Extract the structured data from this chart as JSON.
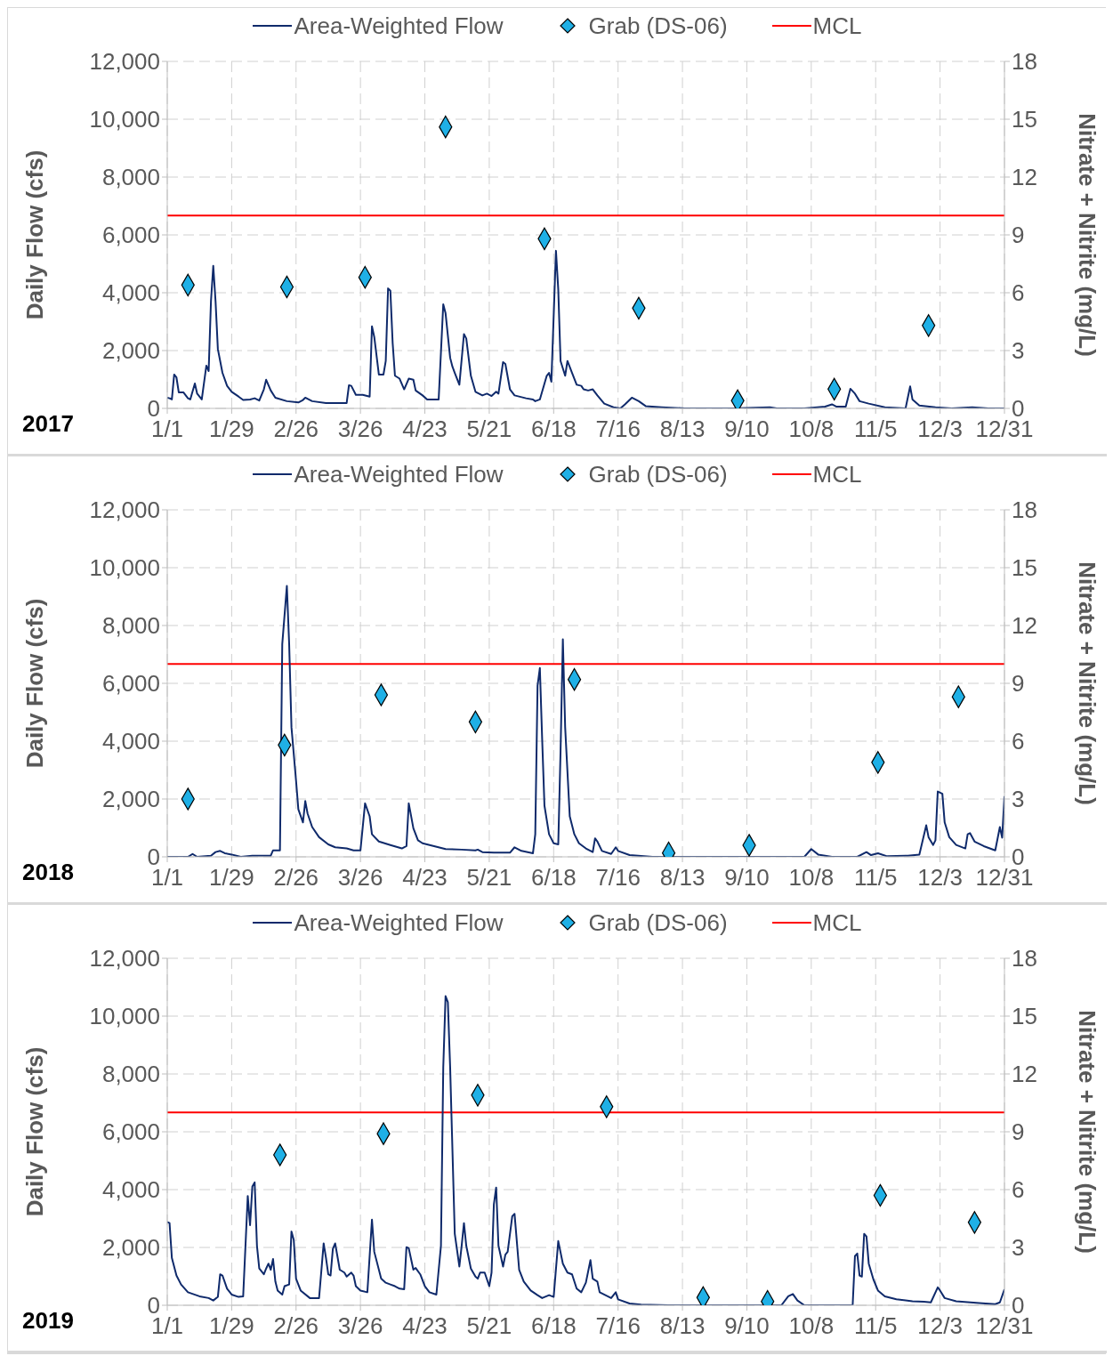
{
  "chart_data": [
    {
      "type": "line",
      "title": "2017",
      "ylabel": "Daily Flow (cfs)",
      "y2label": "Nitrate + Nitrite (mg/L)",
      "legend": "top",
      "grid": true,
      "xlim": [
        "2017-01-01",
        "2017-12-31"
      ],
      "xticks": [
        {
          "value": "2017-01-01",
          "label": "1/1"
        },
        {
          "value": "2017-01-29",
          "label": "1/29"
        },
        {
          "value": "2017-02-26",
          "label": "2/26"
        },
        {
          "value": "2017-03-26",
          "label": "3/26"
        },
        {
          "value": "2017-04-23",
          "label": "4/23"
        },
        {
          "value": "2017-05-21",
          "label": "5/21"
        },
        {
          "value": "2017-06-18",
          "label": "6/18"
        },
        {
          "value": "2017-07-16",
          "label": "7/16"
        },
        {
          "value": "2017-08-13",
          "label": "8/13"
        },
        {
          "value": "2017-09-10",
          "label": "9/10"
        },
        {
          "value": "2017-10-08",
          "label": "10/8"
        },
        {
          "value": "2017-11-05",
          "label": "11/5"
        },
        {
          "value": "2017-12-03",
          "label": "12/3"
        },
        {
          "value": "2017-12-31",
          "label": "12/31"
        }
      ],
      "ylim": [
        0,
        12000
      ],
      "yticks": [
        {
          "value": 0,
          "label": "0"
        },
        {
          "value": 2000,
          "label": "2,000"
        },
        {
          "value": 4000,
          "label": "4,000"
        },
        {
          "value": 6000,
          "label": "6,000"
        },
        {
          "value": 8000,
          "label": "8,000"
        },
        {
          "value": 10000,
          "label": "10,000"
        },
        {
          "value": 12000,
          "label": "12,000"
        }
      ],
      "y2lim": [
        0,
        18
      ],
      "y2ticks": [
        0,
        3,
        6,
        9,
        12,
        15,
        18
      ],
      "ref_lines": [
        {
          "axis": "y2",
          "value": 10,
          "label": "MCL",
          "color": "#ff0000"
        }
      ],
      "series": [
        {
          "name": "Area-Weighted Flow",
          "type": "line",
          "color": "#0f2a6b",
          "x": [
            "2017-01-01",
            "2017-01-02",
            "2017-01-03",
            "2017-01-04",
            "2017-01-05",
            "2017-01-06",
            "2017-01-08",
            "2017-01-10",
            "2017-01-11",
            "2017-01-13",
            "2017-01-14",
            "2017-01-16",
            "2017-01-18",
            "2017-01-19",
            "2017-01-20",
            "2017-01-21",
            "2017-01-22",
            "2017-01-23",
            "2017-01-25",
            "2017-01-27",
            "2017-01-29",
            "2017-02-01",
            "2017-02-03",
            "2017-02-06",
            "2017-02-08",
            "2017-02-10",
            "2017-02-12",
            "2017-02-13",
            "2017-02-15",
            "2017-02-17",
            "2017-02-22",
            "2017-02-27",
            "2017-03-01",
            "2017-03-02",
            "2017-03-05",
            "2017-03-11",
            "2017-03-20",
            "2017-03-21",
            "2017-03-22",
            "2017-03-24",
            "2017-03-27",
            "2017-03-30",
            "2017-03-31",
            "2017-04-01",
            "2017-04-03",
            "2017-04-05",
            "2017-04-06",
            "2017-04-07",
            "2017-04-08",
            "2017-04-09",
            "2017-04-10",
            "2017-04-12",
            "2017-04-14",
            "2017-04-16",
            "2017-04-18",
            "2017-04-19",
            "2017-04-22",
            "2017-04-24",
            "2017-04-29",
            "2017-05-01",
            "2017-05-02",
            "2017-05-04",
            "2017-05-05",
            "2017-05-06",
            "2017-05-08",
            "2017-05-10",
            "2017-05-11",
            "2017-05-13",
            "2017-05-15",
            "2017-05-18",
            "2017-05-20",
            "2017-05-22",
            "2017-05-24",
            "2017-05-25",
            "2017-05-27",
            "2017-05-28",
            "2017-05-30",
            "2017-06-01",
            "2017-06-06",
            "2017-06-09",
            "2017-06-10",
            "2017-06-12",
            "2017-06-15",
            "2017-06-16",
            "2017-06-17",
            "2017-06-19",
            "2017-06-20",
            "2017-06-21",
            "2017-06-23",
            "2017-06-24",
            "2017-06-26",
            "2017-06-28",
            "2017-06-30",
            "2017-07-01",
            "2017-07-03",
            "2017-07-05",
            "2017-07-07",
            "2017-07-10",
            "2017-07-14",
            "2017-07-17",
            "2017-07-19",
            "2017-07-22",
            "2017-07-25",
            "2017-07-28",
            "2017-08-04",
            "2017-08-14",
            "2017-09-04",
            "2017-09-20",
            "2017-09-23",
            "2017-10-05",
            "2017-10-14",
            "2017-10-17",
            "2017-10-19",
            "2017-10-23",
            "2017-10-25",
            "2017-10-27",
            "2017-10-29",
            "2017-11-02",
            "2017-11-09",
            "2017-11-18",
            "2017-11-20",
            "2017-11-21",
            "2017-11-24",
            "2017-12-01",
            "2017-12-08",
            "2017-12-17",
            "2017-12-24",
            "2017-12-31"
          ],
          "values": [
            370,
            350,
            310,
            1170,
            1070,
            555,
            555,
            350,
            310,
            860,
            510,
            310,
            1480,
            1290,
            3700,
            4930,
            3700,
            2050,
            1230,
            780,
            575,
            410,
            290,
            310,
            350,
            270,
            660,
            990,
            620,
            370,
            250,
            205,
            290,
            370,
            250,
            185,
            185,
            800,
            780,
            470,
            470,
            410,
            2840,
            2470,
            1170,
            1170,
            1640,
            4150,
            4070,
            2260,
            1130,
            1030,
            660,
            1030,
            990,
            620,
            450,
            310,
            310,
            3600,
            3290,
            1750,
            1440,
            1230,
            820,
            2570,
            2420,
            1130,
            575,
            450,
            510,
            430,
            575,
            510,
            1600,
            1540,
            660,
            450,
            350,
            310,
            250,
            310,
            1130,
            1230,
            920,
            5450,
            4110,
            1640,
            1130,
            1640,
            1230,
            820,
            780,
            660,
            620,
            660,
            450,
            165,
            40,
            0,
            140,
            370,
            250,
            80,
            40,
            0,
            0,
            40,
            0,
            0,
            60,
            140,
            60,
            60,
            680,
            510,
            250,
            165,
            40,
            0,
            760,
            310,
            100,
            40,
            0,
            40,
            0,
            0
          ]
        },
        {
          "name": "Grab (DS-06)",
          "type": "scatter",
          "marker": "diamond",
          "axis": "y2",
          "color": "#1fb0e6",
          "x": [
            "2017-01-10",
            "2017-02-22",
            "2017-03-28",
            "2017-05-02",
            "2017-06-14",
            "2017-07-25",
            "2017-09-06",
            "2017-10-18",
            "2017-11-28"
          ],
          "values": [
            6.4,
            6.3,
            6.8,
            14.6,
            8.8,
            5.2,
            0.4,
            1.0,
            4.3
          ]
        }
      ]
    },
    {
      "type": "line",
      "title": "2018",
      "ylabel": "Daily Flow (cfs)",
      "y2label": "Nitrate + Nitrite (mg/L)",
      "legend": "top",
      "grid": true,
      "xlim": [
        "2018-01-01",
        "2018-12-31"
      ],
      "xticks": [
        {
          "value": "2018-01-01",
          "label": "1/1"
        },
        {
          "value": "2018-01-29",
          "label": "1/29"
        },
        {
          "value": "2018-02-26",
          "label": "2/26"
        },
        {
          "value": "2018-03-26",
          "label": "3/26"
        },
        {
          "value": "2018-04-23",
          "label": "4/23"
        },
        {
          "value": "2018-05-21",
          "label": "5/21"
        },
        {
          "value": "2018-06-18",
          "label": "6/18"
        },
        {
          "value": "2018-07-16",
          "label": "7/16"
        },
        {
          "value": "2018-08-13",
          "label": "8/13"
        },
        {
          "value": "2018-09-10",
          "label": "9/10"
        },
        {
          "value": "2018-10-08",
          "label": "10/8"
        },
        {
          "value": "2018-11-05",
          "label": "11/5"
        },
        {
          "value": "2018-12-03",
          "label": "12/3"
        },
        {
          "value": "2018-12-31",
          "label": "12/31"
        }
      ],
      "ylim": [
        0,
        12000
      ],
      "yticks": [
        {
          "value": 0,
          "label": "0"
        },
        {
          "value": 2000,
          "label": "2,000"
        },
        {
          "value": 4000,
          "label": "4,000"
        },
        {
          "value": 6000,
          "label": "6,000"
        },
        {
          "value": 8000,
          "label": "8,000"
        },
        {
          "value": 10000,
          "label": "10,000"
        },
        {
          "value": 12000,
          "label": "12,000"
        }
      ],
      "y2lim": [
        0,
        18
      ],
      "y2ticks": [
        0,
        3,
        6,
        9,
        12,
        15,
        18
      ],
      "ref_lines": [
        {
          "axis": "y2",
          "value": 10,
          "label": "MCL",
          "color": "#ff0000"
        }
      ],
      "series": [
        {
          "name": "Area-Weighted Flow",
          "type": "line",
          "color": "#0f2a6b",
          "x": [
            "2018-01-01",
            "2018-01-10",
            "2018-01-12",
            "2018-01-14",
            "2018-01-20",
            "2018-01-22",
            "2018-01-24",
            "2018-01-26",
            "2018-01-29",
            "2018-02-02",
            "2018-02-07",
            "2018-02-15",
            "2018-02-16",
            "2018-02-19",
            "2018-02-20",
            "2018-02-22",
            "2018-02-23",
            "2018-02-24",
            "2018-02-26",
            "2018-02-27",
            "2018-03-01",
            "2018-03-02",
            "2018-03-03",
            "2018-03-05",
            "2018-03-08",
            "2018-03-12",
            "2018-03-15",
            "2018-03-20",
            "2018-03-23",
            "2018-03-26",
            "2018-03-28",
            "2018-03-30",
            "2018-03-31",
            "2018-04-03",
            "2018-04-08",
            "2018-04-13",
            "2018-04-15",
            "2018-04-16",
            "2018-04-18",
            "2018-04-20",
            "2018-04-22",
            "2018-04-27",
            "2018-05-02",
            "2018-05-09",
            "2018-05-15",
            "2018-05-16",
            "2018-05-18",
            "2018-05-23",
            "2018-05-30",
            "2018-06-01",
            "2018-06-04",
            "2018-06-09",
            "2018-06-10",
            "2018-06-11",
            "2018-06-12",
            "2018-06-13",
            "2018-06-14",
            "2018-06-16",
            "2018-06-18",
            "2018-06-20",
            "2018-06-21",
            "2018-06-22",
            "2018-06-23",
            "2018-06-25",
            "2018-06-27",
            "2018-06-29",
            "2018-07-02",
            "2018-07-05",
            "2018-07-06",
            "2018-07-07",
            "2018-07-09",
            "2018-07-13",
            "2018-07-15",
            "2018-07-16",
            "2018-07-21",
            "2018-07-31",
            "2018-08-23",
            "2018-09-23",
            "2018-10-05",
            "2018-10-08",
            "2018-10-11",
            "2018-10-17",
            "2018-10-28",
            "2018-11-01",
            "2018-11-03",
            "2018-11-06",
            "2018-11-10",
            "2018-11-19",
            "2018-11-24",
            "2018-11-27",
            "2018-11-28",
            "2018-11-30",
            "2018-12-01",
            "2018-12-02",
            "2018-12-04",
            "2018-12-05",
            "2018-12-07",
            "2018-12-10",
            "2018-12-14",
            "2018-12-15",
            "2018-12-16",
            "2018-12-18",
            "2018-12-22",
            "2018-12-27",
            "2018-12-29",
            "2018-12-30",
            "2018-12-31"
          ],
          "values": [
            0,
            0,
            100,
            0,
            40,
            165,
            205,
            125,
            80,
            0,
            40,
            40,
            225,
            225,
            7360,
            9370,
            7360,
            4480,
            2630,
            1640,
            1190,
            1930,
            1500,
            1030,
            680,
            430,
            330,
            290,
            225,
            225,
            1850,
            1400,
            780,
            530,
            410,
            290,
            370,
            1850,
            990,
            575,
            470,
            370,
            270,
            250,
            225,
            250,
            165,
            145,
            145,
            330,
            205,
            125,
            780,
            5920,
            6530,
            4070,
            1770,
            780,
            470,
            430,
            3660,
            7520,
            4480,
            1400,
            780,
            470,
            290,
            165,
            640,
            530,
            205,
            100,
            330,
            205,
            60,
            0,
            0,
            0,
            0,
            270,
            80,
            0,
            0,
            165,
            60,
            125,
            20,
            40,
            80,
            1090,
            680,
            410,
            575,
            2260,
            2180,
            1190,
            680,
            410,
            290,
            780,
            820,
            530,
            370,
            225,
            1030,
            660,
            2100
          ]
        },
        {
          "name": "Grab (DS-06)",
          "type": "scatter",
          "marker": "diamond",
          "axis": "y2",
          "color": "#1fb0e6",
          "x": [
            "2018-01-10",
            "2018-02-21",
            "2018-04-04",
            "2018-05-15",
            "2018-06-27",
            "2018-08-07",
            "2018-09-11",
            "2018-11-06",
            "2018-12-11"
          ],
          "values": [
            3.0,
            5.8,
            8.4,
            7.0,
            9.2,
            0.2,
            0.6,
            4.9,
            8.3
          ]
        }
      ]
    },
    {
      "type": "line",
      "title": "2019",
      "ylabel": "Daily Flow (cfs)",
      "y2label": "Nitrate + Nitrite (mg/L)",
      "legend": "top",
      "grid": true,
      "xlim": [
        "2019-01-01",
        "2019-12-31"
      ],
      "xticks": [
        {
          "value": "2019-01-01",
          "label": "1/1"
        },
        {
          "value": "2019-01-29",
          "label": "1/29"
        },
        {
          "value": "2019-02-26",
          "label": "2/26"
        },
        {
          "value": "2019-03-26",
          "label": "3/26"
        },
        {
          "value": "2019-04-23",
          "label": "4/23"
        },
        {
          "value": "2019-05-21",
          "label": "5/21"
        },
        {
          "value": "2019-06-18",
          "label": "6/18"
        },
        {
          "value": "2019-07-16",
          "label": "7/16"
        },
        {
          "value": "2019-08-13",
          "label": "8/13"
        },
        {
          "value": "2019-09-10",
          "label": "9/10"
        },
        {
          "value": "2019-10-08",
          "label": "10/8"
        },
        {
          "value": "2019-11-05",
          "label": "11/5"
        },
        {
          "value": "2019-12-03",
          "label": "12/3"
        },
        {
          "value": "2019-12-31",
          "label": "12/31"
        }
      ],
      "ylim": [
        0,
        12000
      ],
      "yticks": [
        {
          "value": 0,
          "label": "0"
        },
        {
          "value": 2000,
          "label": "2,000"
        },
        {
          "value": 4000,
          "label": "4,000"
        },
        {
          "value": 6000,
          "label": "6,000"
        },
        {
          "value": 8000,
          "label": "8,000"
        },
        {
          "value": 10000,
          "label": "10,000"
        },
        {
          "value": 12000,
          "label": "12,000"
        }
      ],
      "y2lim": [
        0,
        18
      ],
      "y2ticks": [
        0,
        3,
        6,
        9,
        12,
        15,
        18
      ],
      "ref_lines": [
        {
          "axis": "y2",
          "value": 10,
          "label": "MCL",
          "color": "#ff0000"
        }
      ],
      "series": [
        {
          "name": "Area-Weighted Flow",
          "type": "line",
          "color": "#0f2a6b",
          "x": [
            "2019-01-01",
            "2019-01-02",
            "2019-01-03",
            "2019-01-05",
            "2019-01-07",
            "2019-01-10",
            "2019-01-15",
            "2019-01-19",
            "2019-01-21",
            "2019-01-23",
            "2019-01-24",
            "2019-01-25",
            "2019-01-27",
            "2019-01-29",
            "2019-02-01",
            "2019-02-03",
            "2019-02-05",
            "2019-02-06",
            "2019-02-07",
            "2019-02-08",
            "2019-02-09",
            "2019-02-10",
            "2019-02-12",
            "2019-02-13",
            "2019-02-14",
            "2019-02-15",
            "2019-02-16",
            "2019-02-17",
            "2019-02-18",
            "2019-02-20",
            "2019-02-21",
            "2019-02-23",
            "2019-02-24",
            "2019-02-25",
            "2019-02-26",
            "2019-02-28",
            "2019-03-04",
            "2019-03-08",
            "2019-03-10",
            "2019-03-11",
            "2019-03-12",
            "2019-03-13",
            "2019-03-14",
            "2019-03-15",
            "2019-03-17",
            "2019-03-19",
            "2019-03-20",
            "2019-03-22",
            "2019-03-23",
            "2019-03-24",
            "2019-03-26",
            "2019-03-29",
            "2019-03-31",
            "2019-04-01",
            "2019-04-04",
            "2019-04-06",
            "2019-04-08",
            "2019-04-10",
            "2019-04-12",
            "2019-04-14",
            "2019-04-15",
            "2019-04-16",
            "2019-04-18",
            "2019-04-19",
            "2019-04-21",
            "2019-04-23",
            "2019-04-25",
            "2019-04-28",
            "2019-04-30",
            "2019-05-01",
            "2019-05-02",
            "2019-05-03",
            "2019-05-04",
            "2019-05-06",
            "2019-05-08",
            "2019-05-09",
            "2019-05-10",
            "2019-05-11",
            "2019-05-13",
            "2019-05-15",
            "2019-05-16",
            "2019-05-17",
            "2019-05-19",
            "2019-05-21",
            "2019-05-22",
            "2019-05-23",
            "2019-05-24",
            "2019-05-25",
            "2019-05-27",
            "2019-05-28",
            "2019-05-29",
            "2019-05-31",
            "2019-06-01",
            "2019-06-03",
            "2019-06-05",
            "2019-06-08",
            "2019-06-11",
            "2019-06-13",
            "2019-06-16",
            "2019-06-18",
            "2019-06-20",
            "2019-06-22",
            "2019-06-24",
            "2019-06-26",
            "2019-06-28",
            "2019-06-30",
            "2019-07-02",
            "2019-07-04",
            "2019-07-05",
            "2019-07-07",
            "2019-07-08",
            "2019-07-13",
            "2019-07-15",
            "2019-07-16",
            "2019-07-21",
            "2019-07-26",
            "2019-08-07",
            "2019-09-16",
            "2019-09-25",
            "2019-09-28",
            "2019-09-30",
            "2019-10-02",
            "2019-10-05",
            "2019-10-26",
            "2019-10-27",
            "2019-10-28",
            "2019-10-29",
            "2019-10-30",
            "2019-10-31",
            "2019-11-01",
            "2019-11-02",
            "2019-11-04",
            "2019-11-06",
            "2019-11-09",
            "2019-11-14",
            "2019-11-21",
            "2019-11-26",
            "2019-11-29",
            "2019-12-02",
            "2019-12-03",
            "2019-12-05",
            "2019-12-10",
            "2019-12-20",
            "2019-12-27",
            "2019-12-29",
            "2019-12-31"
          ],
          "values": [
            2880,
            2840,
            1640,
            1030,
            720,
            450,
            310,
            250,
            165,
            290,
            1070,
            1030,
            575,
            370,
            290,
            310,
            3780,
            2770,
            4110,
            4250,
            2060,
            1270,
            1070,
            1270,
            1440,
            1230,
            1600,
            820,
            510,
            370,
            660,
            720,
            2550,
            2260,
            920,
            510,
            250,
            250,
            2140,
            1640,
            1070,
            1030,
            1950,
            2140,
            1230,
            1130,
            990,
            1130,
            1030,
            660,
            510,
            450,
            2960,
            1850,
            920,
            780,
            720,
            660,
            575,
            555,
            2010,
            1970,
            1230,
            1290,
            1070,
            660,
            450,
            370,
            2060,
            8220,
            10690,
            10480,
            8220,
            2470,
            1340,
            2060,
            2840,
            2060,
            1270,
            990,
            920,
            1130,
            1130,
            660,
            1130,
            3490,
            4070,
            2060,
            1340,
            1750,
            1850,
            3080,
            3160,
            1230,
            820,
            510,
            350,
            250,
            350,
            290,
            2220,
            1440,
            1130,
            1070,
            575,
            450,
            780,
            1560,
            920,
            820,
            450,
            250,
            450,
            205,
            60,
            20,
            0,
            0,
            0,
            310,
            390,
            165,
            0,
            0,
            1700,
            1790,
            1030,
            990,
            2470,
            2380,
            1440,
            900,
            510,
            310,
            205,
            140,
            125,
            100,
            620,
            510,
            250,
            140,
            80,
            40,
            100,
            555
          ]
        },
        {
          "name": "Grab (DS-06)",
          "type": "scatter",
          "marker": "diamond",
          "axis": "y2",
          "color": "#1fb0e6",
          "x": [
            "2019-02-19",
            "2019-04-05",
            "2019-05-16",
            "2019-07-11",
            "2019-08-22",
            "2019-09-19",
            "2019-11-07",
            "2019-12-18"
          ],
          "values": [
            7.8,
            8.9,
            10.9,
            10.3,
            0.4,
            0.2,
            5.7,
            4.3
          ]
        }
      ]
    }
  ]
}
